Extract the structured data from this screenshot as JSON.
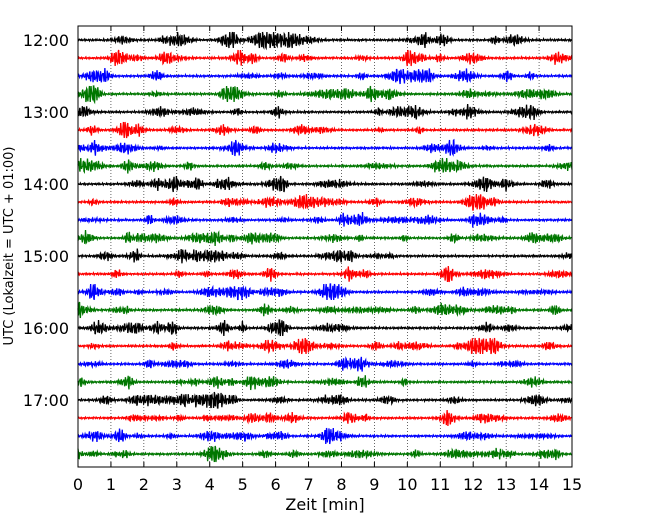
{
  "chart_data": {
    "type": "line",
    "title": "",
    "xlabel": "Zeit  [min]",
    "ylabel": "UTC (Lokalzeit = UTC + 01:00)",
    "xlim": [
      0,
      15
    ],
    "x_ticks": [
      "0",
      "1",
      "2",
      "3",
      "4",
      "5",
      "6",
      "7",
      "8",
      "9",
      "10",
      "11",
      "12",
      "13",
      "14",
      "15"
    ],
    "y_ticks": [
      {
        "label": "12:00",
        "minutes": 0
      },
      {
        "label": "13:00",
        "minutes": 60
      },
      {
        "label": "14:00",
        "minutes": 120
      },
      {
        "label": "15:00",
        "minutes": 180
      },
      {
        "label": "16:00",
        "minutes": 240
      },
      {
        "label": "17:00",
        "minutes": 300
      }
    ],
    "trace_interval_minutes": 15,
    "trace_start_times": [
      "12:00",
      "12:15",
      "12:30",
      "12:45",
      "13:00",
      "13:15",
      "13:30",
      "13:45",
      "14:00",
      "14:15",
      "14:30",
      "14:45",
      "15:00",
      "15:15",
      "15:30",
      "15:45",
      "16:00",
      "16:15",
      "16:30",
      "16:45",
      "17:00",
      "17:15",
      "17:30",
      "17:45"
    ],
    "trace_colors": [
      "#000000",
      "#ff0000",
      "#0000ff",
      "#007700"
    ],
    "grid": "vertical dotted lines at each minute",
    "legend": "none"
  }
}
